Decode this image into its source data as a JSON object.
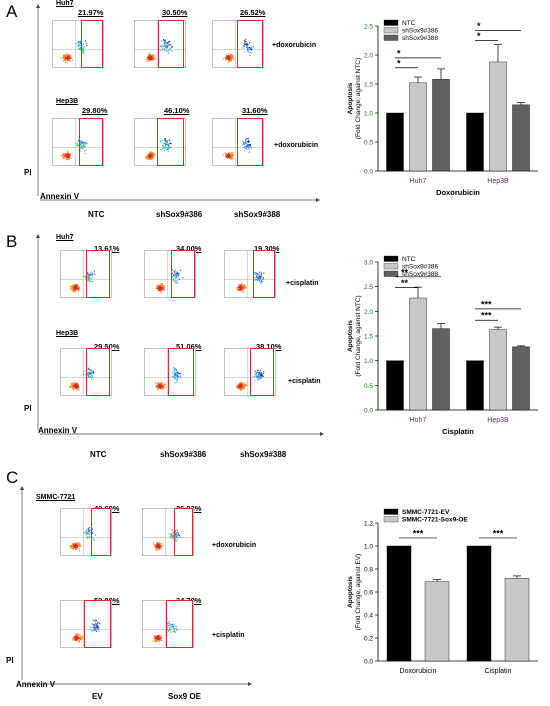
{
  "figure": {
    "panels": [
      {
        "letter": "A",
        "flow": {
          "rows": [
            {
              "cell_line": "Huh7",
              "treatment": "+doxorubicin",
              "pcts": [
                "21.97%",
                "30.50%",
                "26.52%"
              ]
            },
            {
              "cell_line": "Hep3B",
              "treatment": "+doxorubicin",
              "pcts": [
                "29.80%",
                "46.10%",
                "31.60%"
              ]
            }
          ],
          "columns": [
            "NTC",
            "shSox9#386",
            "shSox9#388"
          ],
          "y_axis": "PI",
          "x_axis": "Annexin V"
        }
      },
      {
        "letter": "B",
        "flow": {
          "rows": [
            {
              "cell_line": "Huh7",
              "treatment": "+cisplatin",
              "pcts": [
                "13.61%",
                "34.00%",
                "19.30%"
              ]
            },
            {
              "cell_line": "Hep3B",
              "treatment": "+cisplatin",
              "pcts": [
                "29.50%",
                "51.06%",
                "38.10%"
              ]
            }
          ],
          "columns": [
            "NTC",
            "shSox9#386",
            "shSox9#388"
          ],
          "y_axis": "PI",
          "x_axis": "Annexin V"
        }
      },
      {
        "letter": "C",
        "flow": {
          "title": "SMMC-7721",
          "rows": [
            {
              "treatment": "+doxorubicin",
              "pcts": [
                "40.60%",
                "26.93%"
              ]
            },
            {
              "treatment": "+cisplatin",
              "pcts": [
                "50.80%",
                "34.70%"
              ]
            }
          ],
          "columns": [
            "EV",
            "Sox9 OE"
          ],
          "y_axis": "PI",
          "x_axis": "Annexin V"
        }
      }
    ]
  },
  "chart_data": [
    {
      "type": "bar",
      "categories": [
        "Huh7",
        "Hep3B"
      ],
      "series": [
        {
          "name": "NTC",
          "values": [
            1.0,
            1.0
          ],
          "errors": [
            0,
            0
          ]
        },
        {
          "name": "shSox9#386",
          "values": [
            1.52,
            1.88
          ],
          "errors": [
            0.1,
            0.3
          ]
        },
        {
          "name": "shSox9#388",
          "values": [
            1.58,
            1.14
          ],
          "errors": [
            0.18,
            0.04
          ]
        }
      ],
      "ylabel": "Apoptosis\n(Fold Change, against NTC)",
      "xlabel": "Doxorubicin",
      "ylim": [
        0,
        2.5
      ],
      "yticks": [
        "0.0",
        "0.5",
        "1.0",
        "1.5",
        "2.0",
        "2.5"
      ],
      "significance": [
        "*",
        "*",
        "*",
        "*"
      ],
      "legend": "top-left",
      "colors": [
        "#000000",
        "#c8c8c8",
        "#606060"
      ]
    },
    {
      "type": "bar",
      "categories": [
        "Huh7",
        "Hep3B"
      ],
      "series": [
        {
          "name": "NTC",
          "values": [
            1.0,
            1.0
          ],
          "errors": [
            0,
            0
          ]
        },
        {
          "name": "shSox9#386",
          "values": [
            2.27,
            1.63
          ],
          "errors": [
            0.22,
            0.05
          ]
        },
        {
          "name": "shSox9#388",
          "values": [
            1.65,
            1.28
          ],
          "errors": [
            0.1,
            0.02
          ]
        }
      ],
      "ylabel": "Apoptosis\n(Fold Change, against NTC)",
      "xlabel": "Cisplatin",
      "ylim": [
        0,
        3.0
      ],
      "yticks": [
        "0.0",
        "0.5",
        "1.0",
        "1.5",
        "2.0",
        "2.5",
        "3.0"
      ],
      "significance": [
        "**",
        "**",
        "***",
        "***"
      ],
      "legend": "top-left",
      "colors": [
        "#000000",
        "#c8c8c8",
        "#606060"
      ]
    },
    {
      "type": "bar",
      "categories": [
        "Doxorubicin",
        "Cisplatin"
      ],
      "series": [
        {
          "name": "SMMC-7721-EV",
          "values": [
            1.0,
            1.0
          ],
          "errors": [
            0,
            0
          ]
        },
        {
          "name": "SMMC-7721-Sox9-OE",
          "values": [
            0.69,
            0.72
          ],
          "errors": [
            0.02,
            0.02
          ]
        }
      ],
      "ylabel": "Apoptosis\n(Fold Change, against EV)",
      "xlabel": "",
      "ylim": [
        0,
        1.2
      ],
      "yticks": [
        "0.0",
        "0.2",
        "0.4",
        "0.6",
        "0.8",
        "1.0",
        "1.2"
      ],
      "significance": [
        "***",
        "***"
      ],
      "legend": "top-left",
      "colors": [
        "#000000",
        "#c8c8c8"
      ]
    }
  ]
}
